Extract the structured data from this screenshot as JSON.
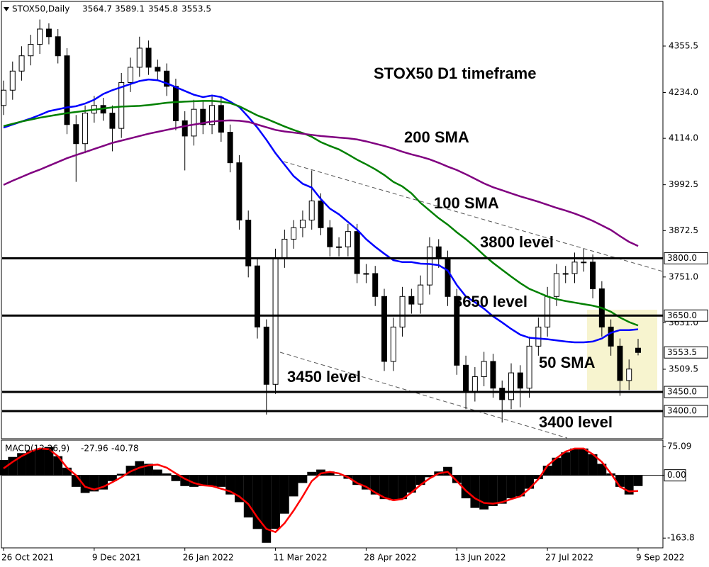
{
  "chart_data": [
    {
      "type": "candlestick",
      "symbol": "STOX50,Daily",
      "title": "STOX50 D1 timeframe",
      "categories": [
        "26 Oct 2021",
        null,
        null,
        null,
        null,
        null,
        null,
        null,
        null,
        null,
        "9 Dec 2021",
        null,
        null,
        null,
        null,
        null,
        null,
        null,
        null,
        null,
        "26 Jan 2022",
        null,
        null,
        null,
        null,
        null,
        null,
        null,
        null,
        null,
        "11 Mar 2022",
        null,
        null,
        null,
        null,
        null,
        null,
        null,
        null,
        null,
        "28 Apr 2022",
        null,
        null,
        null,
        null,
        null,
        null,
        null,
        null,
        null,
        "13 Jun 2022",
        null,
        null,
        null,
        null,
        null,
        null,
        null,
        null,
        null,
        "27 Jul 2022",
        null,
        null,
        null,
        null,
        null,
        null,
        null,
        null,
        null,
        "9 Sep 2022"
      ],
      "open": [
        4200,
        4240,
        4290,
        4330,
        4360,
        4400,
        4380,
        4330,
        4150,
        4100,
        4180,
        4200,
        4180,
        4140,
        4260,
        4300,
        4350,
        4300,
        4290,
        4250,
        4160,
        4120,
        4190,
        4150,
        4200,
        4130,
        4050,
        3900,
        3780,
        3620,
        3470,
        3800,
        3850,
        3880,
        3900,
        3950,
        3880,
        3830,
        3830,
        3870,
        3760,
        3760,
        3700,
        3530,
        3620,
        3700,
        3680,
        3730,
        3830,
        3800,
        3700,
        3520,
        3450,
        3490,
        3530,
        3460,
        3430,
        3500,
        3460,
        3570,
        3620,
        3700,
        3760,
        3760,
        3790,
        3790,
        3720,
        3620,
        3570,
        3480,
        3564.7
      ],
      "high": [
        4265,
        4315,
        4355,
        4385,
        4425,
        4415,
        4400,
        4350,
        4175,
        4200,
        4225,
        4220,
        4200,
        4285,
        4325,
        4380,
        4370,
        4320,
        4310,
        4270,
        4185,
        4215,
        4210,
        4225,
        4220,
        4150,
        4070,
        3925,
        3800,
        3640,
        3825,
        3875,
        3900,
        3925,
        4030,
        3970,
        3900,
        3855,
        3890,
        3890,
        3785,
        3780,
        3720,
        3645,
        3725,
        3720,
        3755,
        3855,
        3850,
        3820,
        3720,
        3545,
        3515,
        3555,
        3550,
        3480,
        3525,
        3520,
        3595,
        3645,
        3725,
        3785,
        3780,
        3815,
        3825,
        3810,
        3740,
        3640,
        3590,
        3535,
        3589.1
      ],
      "low": [
        4175,
        4215,
        4265,
        4305,
        4335,
        4360,
        4310,
        4125,
        4000,
        4075,
        4155,
        4160,
        4080,
        4115,
        4235,
        4275,
        4280,
        4265,
        4225,
        4135,
        4030,
        4095,
        4125,
        4125,
        4105,
        4025,
        3875,
        3750,
        3590,
        3391,
        3445,
        3775,
        3825,
        3855,
        3875,
        3860,
        3805,
        3805,
        3805,
        3735,
        3735,
        3675,
        3505,
        3505,
        3595,
        3655,
        3655,
        3705,
        3775,
        3675,
        3495,
        3405,
        3425,
        3465,
        3435,
        3370,
        3405,
        3410,
        3435,
        3545,
        3595,
        3675,
        3735,
        3735,
        3765,
        3695,
        3595,
        3545,
        3440,
        3455,
        3545.8
      ],
      "close": [
        4240,
        4290,
        4330,
        4360,
        4400,
        4380,
        4330,
        4150,
        4100,
        4180,
        4200,
        4180,
        4140,
        4260,
        4300,
        4350,
        4300,
        4290,
        4250,
        4160,
        4120,
        4190,
        4150,
        4200,
        4130,
        4050,
        3900,
        3780,
        3620,
        3470,
        3800,
        3850,
        3880,
        3900,
        3950,
        3880,
        3830,
        3830,
        3870,
        3760,
        3760,
        3700,
        3530,
        3620,
        3700,
        3680,
        3730,
        3830,
        3800,
        3700,
        3520,
        3450,
        3490,
        3530,
        3460,
        3430,
        3500,
        3460,
        3570,
        3620,
        3700,
        3760,
        3760,
        3790,
        3790,
        3720,
        3620,
        3570,
        3480,
        3510,
        3553.5
      ],
      "series": [
        {
          "name": "50 SMA",
          "color": "#0000ff",
          "values": [
            4142,
            4150,
            4158,
            4166,
            4175,
            4185,
            4190,
            4195,
            4198,
            4205,
            4215,
            4230,
            4240,
            4248,
            4256,
            4264,
            4268,
            4266,
            4258,
            4248,
            4238,
            4228,
            4222,
            4226,
            4222,
            4210,
            4196,
            4170,
            4142,
            4110,
            4075,
            4045,
            4015,
            3995,
            3985,
            3955,
            3930,
            3915,
            3895,
            3875,
            3850,
            3830,
            3812,
            3795,
            3790,
            3790,
            3786,
            3785,
            3782,
            3768,
            3730,
            3700,
            3685,
            3668,
            3648,
            3632,
            3615,
            3600,
            3592,
            3590,
            3588,
            3585,
            3582,
            3580,
            3580,
            3582,
            3590,
            3605,
            3612,
            3612,
            3614
          ]
        },
        {
          "name": "100 SMA",
          "color": "#008000",
          "values": [
            4146,
            4152,
            4158,
            4163,
            4168,
            4172,
            4176,
            4180,
            4183,
            4186,
            4189,
            4192,
            4195,
            4197,
            4198,
            4199,
            4201,
            4204,
            4207,
            4209,
            4210,
            4211,
            4212,
            4212,
            4210,
            4206,
            4198,
            4186,
            4174,
            4165,
            4155,
            4145,
            4136,
            4128,
            4118,
            4104,
            4094,
            4085,
            4072,
            4058,
            4046,
            4033,
            4018,
            4000,
            3988,
            3970,
            3945,
            3925,
            3905,
            3888,
            3868,
            3850,
            3830,
            3808,
            3788,
            3770,
            3752,
            3735,
            3720,
            3710,
            3700,
            3693,
            3688,
            3684,
            3680,
            3676,
            3670,
            3660,
            3645,
            3633,
            3624
          ]
        },
        {
          "name": "200 SMA",
          "color": "#800080",
          "values": [
            3992,
            4003,
            4013,
            4023,
            4032,
            4042,
            4052,
            4062,
            4070,
            4078,
            4086,
            4094,
            4102,
            4108,
            4114,
            4120,
            4126,
            4131,
            4136,
            4141,
            4146,
            4150,
            4154,
            4158,
            4160,
            4161,
            4160,
            4157,
            4150,
            4143,
            4136,
            4132,
            4129,
            4126,
            4123,
            4120,
            4118,
            4116,
            4114,
            4111,
            4106,
            4100,
            4094,
            4087,
            4079,
            4072,
            4066,
            4059,
            4050,
            4040,
            4031,
            4020,
            4008,
            3996,
            3986,
            3978,
            3970,
            3962,
            3955,
            3948,
            3940,
            3932,
            3925,
            3917,
            3908,
            3898,
            3886,
            3874,
            3858,
            3843,
            3832
          ]
        }
      ],
      "levels": [
        {
          "value": 3800,
          "label": "3800.0",
          "text": "3800 level"
        },
        {
          "value": 3650,
          "label": "3650.0",
          "text": "3650 level"
        },
        {
          "value": 3450,
          "label": "3450.0",
          "text": "3450 level"
        },
        {
          "value": 3400,
          "label": "3400.0",
          "text": "3400 level"
        }
      ],
      "ylim": [
        3329.5,
        4470.5
      ],
      "yticks": [
        4355.5,
        {
          "value": 4234,
          "label": "4234.0"
        },
        {
          "value": 4114,
          "label": "4114.0"
        },
        3992.5,
        3872.5,
        {
          "value": 3751,
          "label": "3751.0"
        },
        {
          "value": 3631,
          "label": "3631.0"
        },
        3509.5
      ],
      "up_color": "#ffffff",
      "down_color": "#000000"
    },
    {
      "type": "macd",
      "label": "MACD(12,26,9)",
      "histogram": {
        "color": "#000000",
        "values": [
          40,
          48,
          58,
          65,
          70,
          74,
          50,
          20,
          -30,
          -46,
          -42,
          -37,
          -15,
          4,
          25,
          37,
          30,
          15,
          5,
          -15,
          -28,
          -30,
          -28,
          -28,
          -30,
          -50,
          -70,
          -110,
          -140,
          -176,
          -140,
          -100,
          -55,
          -20,
          9,
          15,
          10,
          0,
          -9,
          -25,
          -37,
          -50,
          -62,
          -65,
          -62,
          -45,
          -25,
          -5,
          10,
          22,
          -20,
          -60,
          -85,
          -89,
          -80,
          -74,
          -60,
          -55,
          -35,
          -10,
          25,
          46,
          60,
          70,
          70,
          55,
          30,
          5,
          -30,
          -50,
          -27.96
        ]
      },
      "signal": {
        "color": "#ff0000",
        "values": [
          18,
          35,
          50,
          62,
          70,
          68,
          50,
          20,
          0,
          -30,
          -37,
          -30,
          -18,
          -5,
          10,
          20,
          26,
          28,
          20,
          5,
          -9,
          -20,
          -26,
          -28,
          -35,
          -42,
          -55,
          -75,
          -110,
          -140,
          -148,
          -125,
          -92,
          -55,
          -15,
          5,
          9,
          5,
          -5,
          -20,
          -30,
          -45,
          -58,
          -65,
          -62,
          -45,
          -25,
          -8,
          5,
          9,
          -15,
          -40,
          -60,
          -72,
          -74,
          -70,
          -62,
          -55,
          -35,
          -10,
          25,
          45,
          62,
          70,
          70,
          55,
          35,
          5,
          -30,
          -42,
          -40.78
        ]
      },
      "ylim": [
        -230,
        90
      ],
      "yticks": [
        75.09,
        {
          "value": 0,
          "label": "0.00"
        },
        -163.8
      ]
    }
  ]
}
